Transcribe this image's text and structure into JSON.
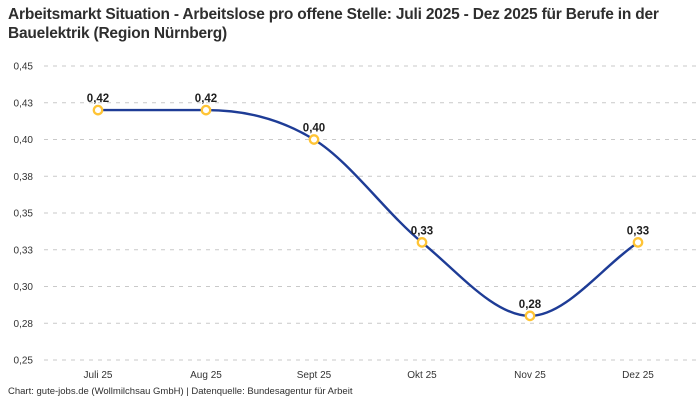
{
  "title": "Arbeitsmarkt Situation - Arbeitslose pro offene Stelle: Juli 2025 - Dez 2025 für Berufe in der Bauelektrik (Region Nürnberg)",
  "footer": "Chart: gute-jobs.de (Wollmilchsau GmbH) | Datenquelle: Bundesagentur für Arbeit",
  "chart_data": {
    "type": "line",
    "title": "Arbeitsmarkt Situation - Arbeitslose pro offene Stelle: Juli 2025 - Dez 2025 für Berufe in der Bauelektrik (Region Nürnberg)",
    "categories": [
      "Juli 25",
      "Aug 25",
      "Sept 25",
      "Okt 25",
      "Nov 25",
      "Dez 25"
    ],
    "values": [
      0.42,
      0.42,
      0.4,
      0.33,
      0.28,
      0.33
    ],
    "point_labels": [
      "0,42",
      "0,42",
      "0,40",
      "0,33",
      "0,28",
      "0,33"
    ],
    "y_ticks": [
      {
        "value": 0.45,
        "label": "0,45"
      },
      {
        "value": 0.425,
        "label": "0,43"
      },
      {
        "value": 0.4,
        "label": "0,40"
      },
      {
        "value": 0.375,
        "label": "0,38"
      },
      {
        "value": 0.35,
        "label": "0,35"
      },
      {
        "value": 0.325,
        "label": "0,33"
      },
      {
        "value": 0.3,
        "label": "0,30"
      },
      {
        "value": 0.275,
        "label": "0,28"
      },
      {
        "value": 0.25,
        "label": "0,25"
      }
    ],
    "ylim": [
      0.25,
      0.45
    ],
    "xlabel": "",
    "ylabel": "",
    "grid": "horizontal-dashed",
    "legend": "none",
    "curve": "monotone-smooth",
    "colors": {
      "line": "#1e3c96",
      "marker_stroke": "#ffc435",
      "marker_fill": "#ffffff",
      "grid": "#c9c9c9",
      "tick_text": "#333333",
      "data_label_text": "#1f1f1f"
    }
  }
}
